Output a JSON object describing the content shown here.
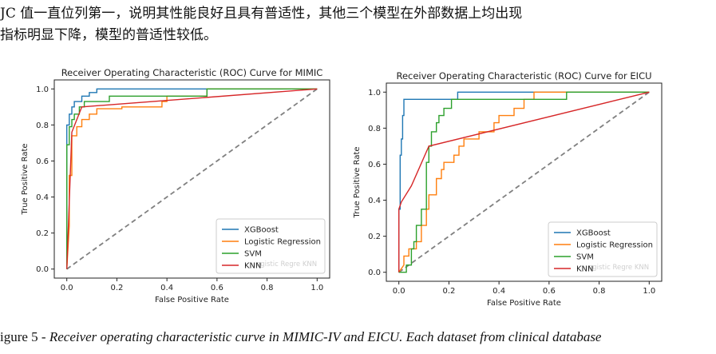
{
  "paragraph": {
    "line1": "JC 值一直位列第一，说明其性能良好且具有普适性，其他三个模型在外部数据上均出现",
    "line2": "指标明显下降，模型的普适性较低。"
  },
  "caption": {
    "prefix": "igure 5 - ",
    "text": "Receiver operating characteristic curve in MIMIC-IV and EICU. Each dataset from clinical database"
  },
  "colors": {
    "xgboost": "#1f77b4",
    "logistic": "#ff7f0e",
    "svm": "#2ca02c",
    "knn": "#d62728",
    "diagonal": "#808080"
  },
  "chart_data": [
    {
      "type": "line",
      "title": "Receiver Operating Characteristic (ROC) Curve for MIMIC",
      "xlabel": "False Positive Rate",
      "ylabel": "True Positive Rate",
      "xlim": [
        0,
        1
      ],
      "ylim": [
        0,
        1
      ],
      "xticks": [
        "0.0",
        "0.2",
        "0.4",
        "0.6",
        "0.8",
        "1.0"
      ],
      "yticks": [
        "0.0",
        "0.2",
        "0.4",
        "0.6",
        "0.8",
        "1.0"
      ],
      "legend_position": "lower-right",
      "legend_ghost": "ogistic Regre  KNN",
      "series": [
        {
          "name": "XGBoost",
          "x": [
            0,
            0,
            0.01,
            0.01,
            0.02,
            0.02,
            0.03,
            0.03,
            0.06,
            0.06,
            0.09,
            0.09,
            0.12,
            0.12,
            0.46,
            0.46,
            1
          ],
          "y": [
            0,
            0.8,
            0.8,
            0.86,
            0.86,
            0.9,
            0.9,
            0.93,
            0.93,
            0.96,
            0.96,
            0.98,
            0.98,
            1,
            1,
            1,
            1
          ]
        },
        {
          "name": "Logistic Regression",
          "x": [
            0,
            0.01,
            0.01,
            0.02,
            0.02,
            0.04,
            0.04,
            0.06,
            0.06,
            0.09,
            0.09,
            0.12,
            0.12,
            0.22,
            0.22,
            0.38,
            0.38,
            0.4,
            0.4,
            0.56,
            0.56,
            1
          ],
          "y": [
            0,
            0.24,
            0.52,
            0.52,
            0.74,
            0.74,
            0.79,
            0.79,
            0.83,
            0.83,
            0.86,
            0.86,
            0.89,
            0.89,
            0.9,
            0.9,
            0.93,
            0.93,
            0.96,
            0.96,
            1,
            1
          ]
        },
        {
          "name": "SVM",
          "x": [
            0,
            0,
            0.01,
            0.01,
            0.02,
            0.02,
            0.03,
            0.03,
            0.05,
            0.05,
            0.07,
            0.07,
            0.17,
            0.17,
            0.56,
            0.56,
            1
          ],
          "y": [
            0,
            0.69,
            0.69,
            0.79,
            0.79,
            0.83,
            0.83,
            0.86,
            0.86,
            0.9,
            0.9,
            0.93,
            0.93,
            0.96,
            0.96,
            1,
            1
          ]
        },
        {
          "name": "KNN",
          "x": [
            0,
            0.02,
            0.06,
            1
          ],
          "y": [
            0,
            0.76,
            0.9,
            1
          ]
        }
      ]
    },
    {
      "type": "line",
      "title": "Receiver Operating Characteristic (ROC) Curve for EICU",
      "xlabel": "False Positive Rate",
      "ylabel": "True Positive Rate",
      "xlim": [
        0,
        1
      ],
      "ylim": [
        0,
        1
      ],
      "xticks": [
        "0.0",
        "0.2",
        "0.4",
        "0.6",
        "0.8",
        "1.0"
      ],
      "yticks": [
        "0.0",
        "0.2",
        "0.4",
        "0.6",
        "0.8",
        "1.0"
      ],
      "legend_position": "lower-right",
      "legend_ghost": "ogistic Regre  KNN",
      "series": [
        {
          "name": "XGBoost",
          "x": [
            0,
            0,
            0.005,
            0.005,
            0.01,
            0.01,
            0.015,
            0.015,
            0.02,
            0.02,
            0.235,
            0.235,
            0.35,
            0.35,
            0.68,
            0.68,
            1
          ],
          "y": [
            0,
            0.35,
            0.35,
            0.65,
            0.65,
            0.74,
            0.74,
            0.87,
            0.87,
            0.96,
            0.96,
            1,
            1,
            1,
            1,
            1,
            1
          ]
        },
        {
          "name": "Logistic Regression",
          "x": [
            0,
            0.02,
            0.02,
            0.04,
            0.04,
            0.07,
            0.07,
            0.09,
            0.09,
            0.11,
            0.11,
            0.12,
            0.12,
            0.15,
            0.15,
            0.17,
            0.17,
            0.18,
            0.18,
            0.22,
            0.22,
            0.24,
            0.24,
            0.26,
            0.26,
            0.32,
            0.32,
            0.38,
            0.38,
            0.4,
            0.4,
            0.46,
            0.46,
            0.5,
            0.5,
            0.54,
            0.54,
            0.82,
            0.82,
            1
          ],
          "y": [
            0,
            0.04,
            0.09,
            0.09,
            0.13,
            0.13,
            0.17,
            0.17,
            0.26,
            0.26,
            0.35,
            0.35,
            0.43,
            0.43,
            0.52,
            0.52,
            0.57,
            0.57,
            0.61,
            0.61,
            0.65,
            0.65,
            0.7,
            0.7,
            0.74,
            0.74,
            0.78,
            0.78,
            0.83,
            0.83,
            0.87,
            0.87,
            0.91,
            0.91,
            0.96,
            0.96,
            1,
            1,
            1,
            1
          ]
        },
        {
          "name": "SVM",
          "x": [
            0,
            0.03,
            0.03,
            0.05,
            0.05,
            0.06,
            0.06,
            0.07,
            0.07,
            0.09,
            0.09,
            0.11,
            0.11,
            0.12,
            0.12,
            0.13,
            0.13,
            0.15,
            0.15,
            0.16,
            0.16,
            0.18,
            0.18,
            0.21,
            0.21,
            0.25,
            0.25,
            0.43,
            0.43,
            0.67,
            0.67,
            1
          ],
          "y": [
            0,
            0,
            0.04,
            0.04,
            0.13,
            0.13,
            0.17,
            0.17,
            0.26,
            0.26,
            0.35,
            0.35,
            0.61,
            0.61,
            0.7,
            0.7,
            0.78,
            0.78,
            0.83,
            0.83,
            0.87,
            0.87,
            0.91,
            0.91,
            0.96,
            0.96,
            0.96,
            0.96,
            0.96,
            0.96,
            1,
            1
          ]
        },
        {
          "name": "KNN",
          "x": [
            0,
            0,
            0.01,
            0.05,
            0.12,
            1
          ],
          "y": [
            0,
            0.35,
            0.39,
            0.48,
            0.7,
            1
          ]
        }
      ]
    }
  ]
}
